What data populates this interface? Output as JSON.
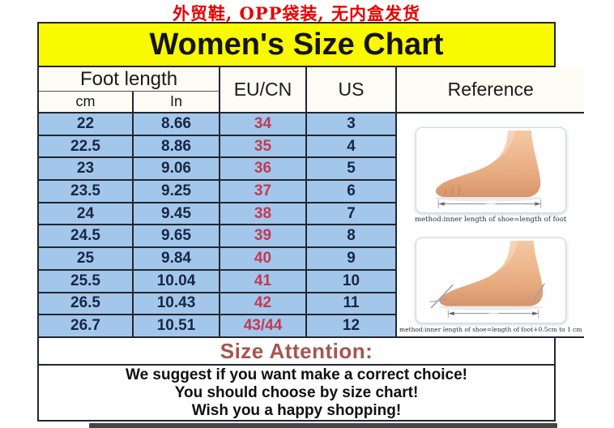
{
  "top_note": "外贸鞋, OPP袋装, 无内盒发货",
  "title": "Women's Size Chart",
  "table": {
    "header": {
      "foot_length": "Foot length",
      "cm": "cm",
      "inch": "In",
      "eu_cn": "EU/CN",
      "us": "US",
      "reference": "Reference"
    },
    "rows": [
      {
        "cm": "22",
        "inch": "8.66",
        "eu": "34",
        "us": "3"
      },
      {
        "cm": "22.5",
        "inch": "8.86",
        "eu": "35",
        "us": "4"
      },
      {
        "cm": "23",
        "inch": "9.06",
        "eu": "36",
        "us": "5"
      },
      {
        "cm": "23.5",
        "inch": "9.25",
        "eu": "37",
        "us": "6"
      },
      {
        "cm": "24",
        "inch": "9.45",
        "eu": "38",
        "us": "7"
      },
      {
        "cm": "24.5",
        "inch": "9.65",
        "eu": "39",
        "us": "8"
      },
      {
        "cm": "25",
        "inch": "9.84",
        "eu": "40",
        "us": "9"
      },
      {
        "cm": "25.5",
        "inch": "10.04",
        "eu": "41",
        "us": "10"
      },
      {
        "cm": "26.5",
        "inch": "10.43",
        "eu": "42",
        "us": "11"
      },
      {
        "cm": "26.7",
        "inch": "10.51",
        "eu": "43/44",
        "us": "12"
      }
    ]
  },
  "reference": {
    "caption_top": "method:inner length of shoe=length of foot",
    "caption_bottom": "method:inner length of shoe=length of foot+0.5cm to 1 cm"
  },
  "attention": {
    "title": "Size Attention:",
    "lines": [
      "We suggest if you want make a correct choice!",
      "You should choose by size chart!",
      "Wish you a happy shopping!"
    ]
  },
  "colors": {
    "title_bg": "#f9f900",
    "row_bg": "#a3c7eb",
    "eu_text": "#c13a52",
    "note_text": "#e80000",
    "attention_text": "#a8544e",
    "border": "#23262e"
  }
}
